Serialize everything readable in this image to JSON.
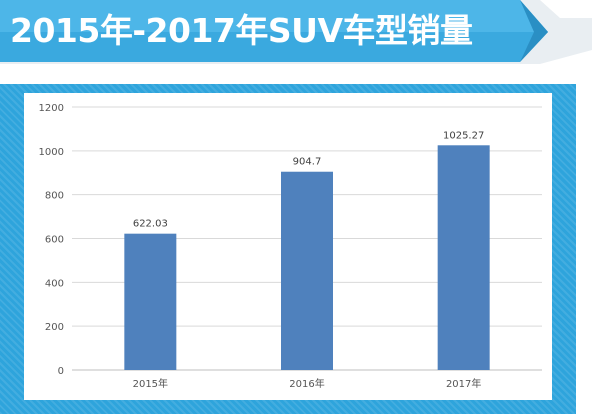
{
  "header": {
    "title": "2015年-2017年SUV车型销量",
    "colors": {
      "banner_light": "#5cc2ee",
      "banner_dark": "#2f9fd6",
      "frame": "#2ea4dc",
      "bar": "#4f81bd"
    }
  },
  "chart_data": {
    "type": "bar",
    "title": "",
    "xlabel": "",
    "ylabel": "",
    "categories": [
      "2015年",
      "2016年",
      "2017年"
    ],
    "values": [
      622.03,
      904.7,
      1025.27
    ],
    "data_labels": [
      "622.03",
      "904.7",
      "1025.27"
    ],
    "ylim": [
      0,
      1200
    ],
    "yticks": [
      0,
      200,
      400,
      600,
      800,
      1000,
      1200
    ],
    "grid": true,
    "legend": "none"
  }
}
